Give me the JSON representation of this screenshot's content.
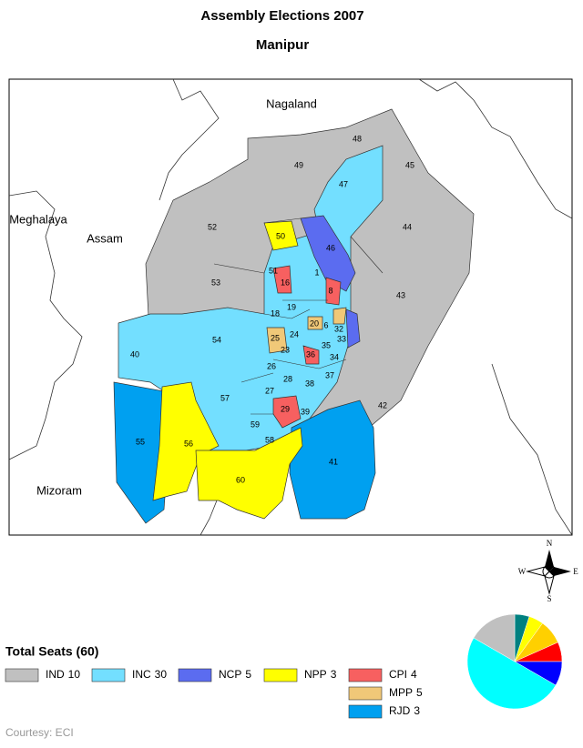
{
  "header": {
    "title": "Assembly Elections 2007",
    "subtitle": "Manipur"
  },
  "map": {
    "regions": [
      "Nagaland",
      "Meghalaya",
      "Assam",
      "Mizoram"
    ],
    "constituencies": [
      "48",
      "49",
      "45",
      "47",
      "52",
      "44",
      "50",
      "46",
      "51",
      "1",
      "53",
      "16",
      "43",
      "8",
      "19",
      "18",
      "54",
      "40",
      "25",
      "24",
      "23",
      "36",
      "35",
      "34",
      "26",
      "28",
      "37",
      "38",
      "57",
      "27",
      "29",
      "39",
      "42",
      "59",
      "58",
      "55",
      "56",
      "41",
      "60",
      "6",
      "32",
      "33",
      "20"
    ]
  },
  "compass": {
    "n": "N",
    "e": "E",
    "s": "S",
    "w": "W"
  },
  "legend": {
    "title": "Total Seats (60)",
    "parties": [
      {
        "name": "IND",
        "seats": 10,
        "color": "#c0c0c0",
        "pie_color": "#c0c0c0"
      },
      {
        "name": "INC",
        "seats": 30,
        "color": "#73dfff",
        "pie_color": "#00ffff"
      },
      {
        "name": "NCP",
        "seats": 5,
        "color": "#5b6cf0",
        "pie_color": "#0000ff"
      },
      {
        "name": "NPP",
        "seats": 3,
        "color": "#ffff00",
        "pie_color": "#ffff00"
      },
      {
        "name": "CPI",
        "seats": 4,
        "color": "#f76060",
        "pie_color": "#ff0000"
      },
      {
        "name": "MPP",
        "seats": 5,
        "color": "#f0c878",
        "pie_color": "#ffd000"
      },
      {
        "name": "RJD",
        "seats": 3,
        "color": "#00a0f0",
        "pie_color": "#008080"
      }
    ]
  },
  "footer": {
    "credit": "Courtesy: ECI"
  }
}
